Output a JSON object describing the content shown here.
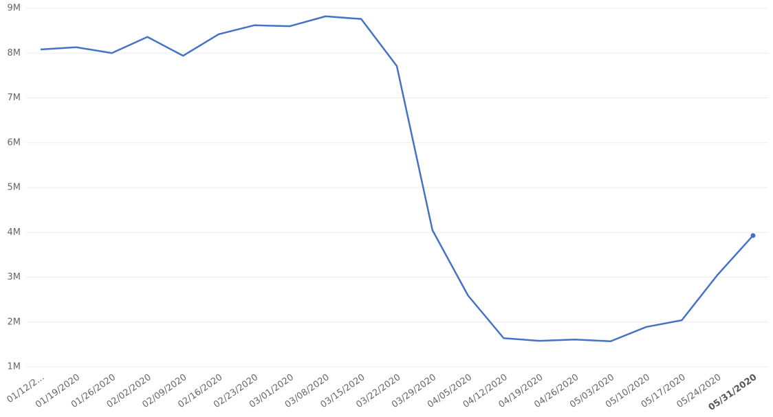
{
  "chart_data": {
    "type": "line",
    "categories": [
      "01/12/2...",
      "01/19/2020",
      "01/26/2020",
      "02/02/2020",
      "02/09/2020",
      "02/16/2020",
      "02/23/2020",
      "03/01/2020",
      "03/08/2020",
      "03/15/2020",
      "03/22/2020",
      "03/29/2020",
      "04/05/2020",
      "04/12/2020",
      "04/19/2020",
      "04/26/2020",
      "05/03/2020",
      "05/10/2020",
      "05/17/2020",
      "05/24/2020",
      "05/31/2020"
    ],
    "series": [
      {
        "color": "#4472c4",
        "values": [
          8080000,
          8130000,
          8000000,
          8360000,
          7940000,
          8420000,
          8620000,
          8600000,
          8820000,
          8760000,
          7710000,
          4050000,
          2590000,
          1640000,
          1580000,
          1610000,
          1570000,
          1890000,
          2040000,
          3050000,
          3930000
        ]
      }
    ],
    "ylim": [
      1000000,
      9000000
    ],
    "yticks": [
      {
        "value": 1000000,
        "label": "1M"
      },
      {
        "value": 2000000,
        "label": "2M"
      },
      {
        "value": 3000000,
        "label": "3M"
      },
      {
        "value": 4000000,
        "label": "4M"
      },
      {
        "value": 5000000,
        "label": "5M"
      },
      {
        "value": 6000000,
        "label": "6M"
      },
      {
        "value": 7000000,
        "label": "7M"
      },
      {
        "value": 8000000,
        "label": "8M"
      },
      {
        "value": 9000000,
        "label": "9M"
      }
    ],
    "grid": true
  }
}
